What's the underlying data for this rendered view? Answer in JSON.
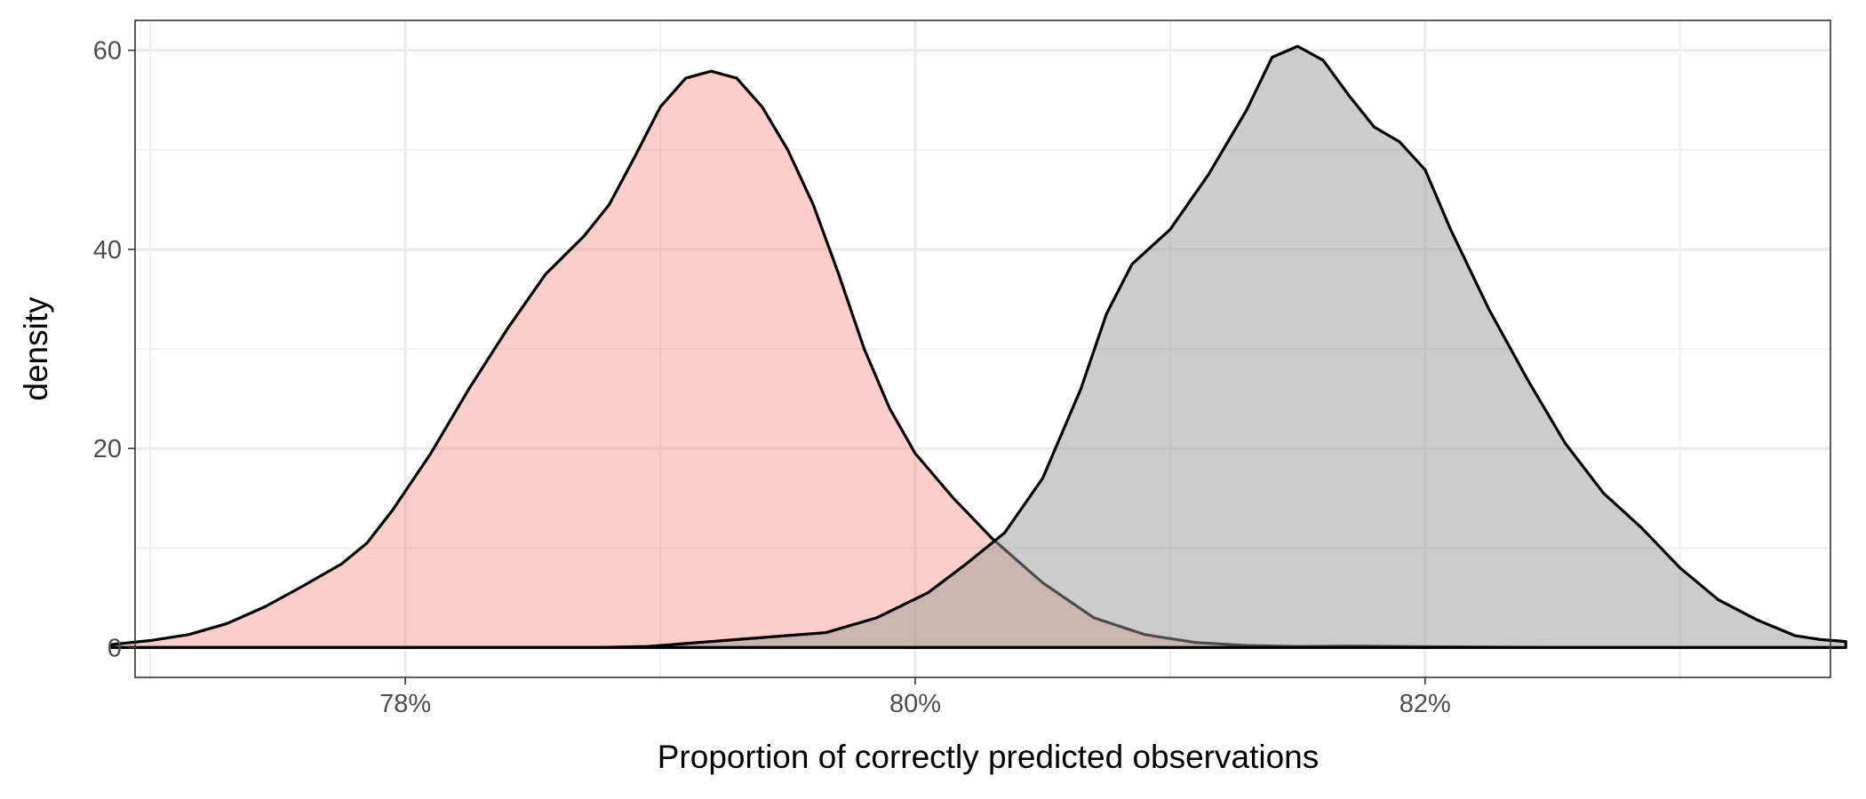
{
  "chart_data": {
    "type": "area",
    "title": "",
    "xlabel": "Proportion of correctly predicted observations",
    "ylabel": "density",
    "xlim": [
      0.7694,
      0.8359
    ],
    "ylim": [
      -3,
      63
    ],
    "grid": true,
    "legend": "none",
    "x_ticks": [
      {
        "value": 0.78,
        "label": "78%"
      },
      {
        "value": 0.8,
        "label": "80%"
      },
      {
        "value": 0.82,
        "label": "82%"
      }
    ],
    "x_minor_ticks": [
      0.77,
      0.79,
      0.81,
      0.83
    ],
    "y_ticks": [
      {
        "value": 0,
        "label": "0"
      },
      {
        "value": 20,
        "label": "20"
      },
      {
        "value": 40,
        "label": "40"
      },
      {
        "value": 60,
        "label": "60"
      }
    ],
    "y_minor_ticks": [
      10,
      30,
      50
    ],
    "series": [
      {
        "fill": "#f8766d",
        "fill_opacity": 0.36,
        "points": [
          [
            0.7685,
            0.3
          ],
          [
            0.77,
            0.7
          ],
          [
            0.7715,
            1.3
          ],
          [
            0.773,
            2.4
          ],
          [
            0.7745,
            4.1
          ],
          [
            0.776,
            6.2
          ],
          [
            0.7775,
            8.4
          ],
          [
            0.7785,
            10.5
          ],
          [
            0.7795,
            13.8
          ],
          [
            0.781,
            19.5
          ],
          [
            0.7825,
            26.0
          ],
          [
            0.784,
            32.0
          ],
          [
            0.7855,
            37.5
          ],
          [
            0.787,
            41.3
          ],
          [
            0.788,
            44.5
          ],
          [
            0.789,
            49.3
          ],
          [
            0.79,
            54.3
          ],
          [
            0.791,
            57.2
          ],
          [
            0.792,
            57.9
          ],
          [
            0.793,
            57.2
          ],
          [
            0.794,
            54.3
          ],
          [
            0.795,
            50.0
          ],
          [
            0.796,
            44.5
          ],
          [
            0.797,
            37.5
          ],
          [
            0.798,
            30.0
          ],
          [
            0.799,
            24.0
          ],
          [
            0.8,
            19.5
          ],
          [
            0.8015,
            15.0
          ],
          [
            0.803,
            11.0
          ],
          [
            0.805,
            6.5
          ],
          [
            0.807,
            3.0
          ],
          [
            0.809,
            1.3
          ],
          [
            0.811,
            0.5
          ],
          [
            0.813,
            0.2
          ],
          [
            0.815,
            0.1
          ],
          [
            0.817,
            0.15
          ],
          [
            0.82,
            0.08
          ],
          [
            0.825,
            0.0
          ],
          [
            0.8359,
            0.0
          ]
        ]
      },
      {
        "fill": "#999999",
        "fill_opacity": 0.5,
        "points": [
          [
            0.7685,
            0.0
          ],
          [
            0.778,
            0.0
          ],
          [
            0.7875,
            0.0
          ],
          [
            0.7895,
            0.1
          ],
          [
            0.792,
            0.6
          ],
          [
            0.7945,
            1.1
          ],
          [
            0.7965,
            1.5
          ],
          [
            0.7985,
            3.0
          ],
          [
            0.8005,
            5.5
          ],
          [
            0.802,
            8.4
          ],
          [
            0.8035,
            11.5
          ],
          [
            0.805,
            17.0
          ],
          [
            0.8065,
            26.0
          ],
          [
            0.8075,
            33.5
          ],
          [
            0.8085,
            38.5
          ],
          [
            0.81,
            42.0
          ],
          [
            0.8115,
            47.5
          ],
          [
            0.813,
            54.0
          ],
          [
            0.814,
            59.3
          ],
          [
            0.815,
            60.4
          ],
          [
            0.816,
            59.0
          ],
          [
            0.817,
            55.5
          ],
          [
            0.818,
            52.3
          ],
          [
            0.819,
            50.8
          ],
          [
            0.82,
            48.0
          ],
          [
            0.821,
            42.0
          ],
          [
            0.8225,
            34.0
          ],
          [
            0.824,
            27.0
          ],
          [
            0.8255,
            20.5
          ],
          [
            0.827,
            15.5
          ],
          [
            0.8285,
            12.0
          ],
          [
            0.83,
            8.0
          ],
          [
            0.8315,
            4.8
          ],
          [
            0.833,
            2.8
          ],
          [
            0.8345,
            1.2
          ],
          [
            0.8355,
            0.8
          ],
          [
            0.8365,
            0.6
          ]
        ]
      }
    ]
  }
}
